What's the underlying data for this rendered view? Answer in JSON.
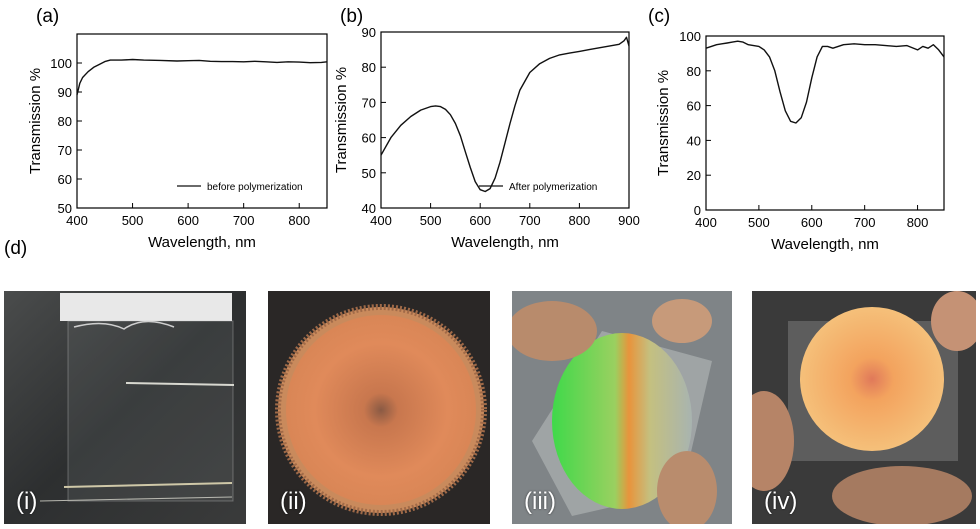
{
  "chart_data": [
    {
      "type": "line",
      "panel_label": "(a)",
      "xlabel": "Wavelength, nm",
      "ylabel": "Transmission %",
      "xlim": [
        400,
        850
      ],
      "ylim": [
        50,
        110
      ],
      "xticks": [
        400,
        500,
        600,
        700,
        800
      ],
      "yticks": [
        50,
        60,
        70,
        80,
        90,
        100
      ],
      "legend": "before polymerization",
      "legend_position": "bottom-right",
      "series": [
        {
          "name": "before polymerization",
          "x": [
            400,
            405,
            410,
            420,
            430,
            440,
            450,
            460,
            480,
            500,
            520,
            550,
            580,
            600,
            620,
            640,
            660,
            680,
            700,
            720,
            740,
            760,
            780,
            800,
            820,
            840,
            850
          ],
          "y": [
            89,
            93,
            95,
            97,
            98.5,
            99.5,
            100.5,
            101,
            101,
            101.2,
            101,
            100.9,
            100.7,
            100.8,
            100.9,
            100.6,
            100.5,
            100.5,
            100.4,
            100.6,
            100.4,
            100.2,
            100.4,
            100.3,
            100.1,
            100.2,
            100.4
          ]
        }
      ]
    },
    {
      "type": "line",
      "panel_label": "(b)",
      "xlabel": "Wavelength, nm",
      "ylabel": "Transmission %",
      "xlim": [
        400,
        900
      ],
      "ylim": [
        40,
        90
      ],
      "xticks": [
        400,
        500,
        600,
        700,
        800,
        900
      ],
      "yticks": [
        40,
        50,
        60,
        70,
        80,
        90
      ],
      "legend": "After polymerization",
      "legend_position": "bottom-right",
      "series": [
        {
          "name": "After polymerization",
          "x": [
            400,
            420,
            440,
            460,
            480,
            500,
            510,
            520,
            530,
            540,
            550,
            560,
            570,
            580,
            590,
            600,
            610,
            620,
            630,
            640,
            650,
            660,
            670,
            680,
            700,
            720,
            740,
            760,
            780,
            800,
            820,
            840,
            860,
            880,
            890,
            895,
            900
          ],
          "y": [
            55,
            60,
            63.5,
            66,
            67.8,
            68.8,
            69,
            68.8,
            68,
            66.5,
            64,
            60.5,
            56,
            51.5,
            47.5,
            45.2,
            44.7,
            45.5,
            48.5,
            53,
            58.5,
            64,
            69,
            73.5,
            78.5,
            81,
            82.5,
            83.5,
            84,
            84.5,
            85,
            85.5,
            86,
            86.5,
            87.5,
            88.5,
            86
          ]
        }
      ]
    },
    {
      "type": "line",
      "panel_label": "(c)",
      "xlabel": "Wavelength, nm",
      "ylabel": "Transmission %",
      "xlim": [
        400,
        850
      ],
      "ylim": [
        0,
        100
      ],
      "xticks": [
        400,
        500,
        600,
        700,
        800
      ],
      "yticks": [
        0,
        20,
        40,
        60,
        80,
        100
      ],
      "series": [
        {
          "x": [
            400,
            410,
            420,
            430,
            440,
            450,
            460,
            470,
            480,
            490,
            500,
            510,
            520,
            530,
            540,
            550,
            560,
            570,
            580,
            590,
            600,
            610,
            620,
            630,
            640,
            660,
            680,
            700,
            720,
            740,
            760,
            780,
            800,
            810,
            820,
            830,
            840,
            850
          ],
          "y": [
            93,
            94,
            95,
            95.5,
            96,
            96.5,
            97,
            96.5,
            95,
            94.5,
            94,
            92,
            88,
            80,
            68,
            57,
            51,
            50,
            53,
            62,
            76,
            88,
            94,
            94,
            93,
            95,
            95.5,
            95,
            95,
            94.5,
            94,
            94.5,
            92,
            94,
            93,
            95,
            92,
            88
          ]
        }
      ]
    }
  ],
  "figure_d": {
    "panel_label": "(d)",
    "photos": [
      {
        "label": "(i)"
      },
      {
        "label": "(ii)"
      },
      {
        "label": "(iii)"
      },
      {
        "label": "(iv)"
      }
    ]
  }
}
